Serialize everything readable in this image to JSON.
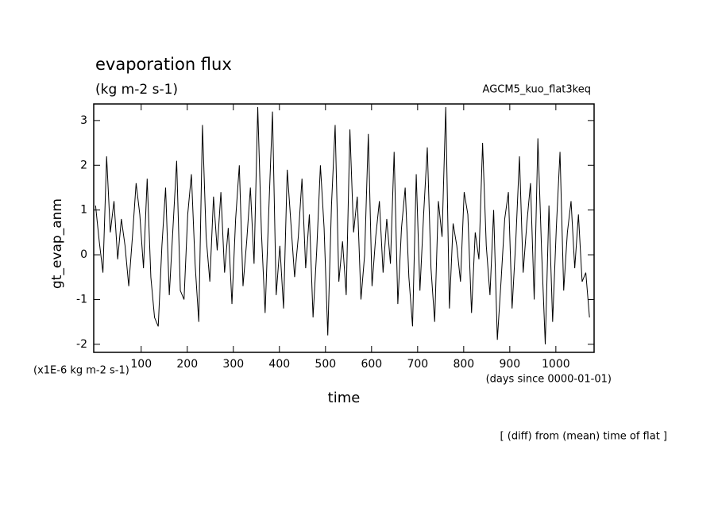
{
  "chart_data": {
    "type": "line",
    "title": "evaporation flux",
    "subtitle": "(kg m-2 s-1)",
    "experiment": "AGCM5_kuo_flat3keq",
    "y_label": "gt_evap_anm",
    "x_label": "time",
    "y_units": "(x1E-6 kg m-2 s-1)",
    "x_units": "(days since 0000-01-01)",
    "note": "[ (diff) from (mean) time of flat ]",
    "x": [
      1,
      9,
      17,
      25,
      33,
      41,
      49,
      57,
      65,
      73,
      81,
      89,
      97,
      105,
      113,
      121,
      129,
      137,
      145,
      153,
      161,
      169,
      177,
      185,
      193,
      201,
      209,
      217,
      225,
      233,
      241,
      249,
      257,
      265,
      273,
      281,
      289,
      297,
      305,
      313,
      321,
      329,
      337,
      345,
      353,
      361,
      369,
      377,
      385,
      393,
      401,
      409,
      417,
      425,
      433,
      441,
      449,
      457,
      465,
      473,
      481,
      489,
      497,
      505,
      513,
      521,
      529,
      537,
      545,
      553,
      561,
      569,
      577,
      585,
      593,
      601,
      609,
      617,
      625,
      633,
      641,
      649,
      657,
      665,
      673,
      681,
      689,
      697,
      705,
      713,
      721,
      729,
      737,
      745,
      753,
      761,
      769,
      777,
      785,
      793,
      801,
      809,
      817,
      825,
      833,
      841,
      849,
      857,
      865,
      873,
      881,
      889,
      897,
      905,
      913,
      921,
      929,
      937,
      945,
      953,
      961,
      969,
      977,
      985,
      993,
      1001,
      1009,
      1017,
      1025,
      1033,
      1041,
      1049,
      1057,
      1065,
      1073
    ],
    "series": [
      {
        "color": "#000000",
        "values": [
          1.1,
          0.3,
          -0.4,
          2.2,
          0.5,
          1.2,
          -0.1,
          0.8,
          0.2,
          -0.7,
          0.4,
          1.6,
          0.9,
          -0.3,
          1.7,
          -0.5,
          -1.4,
          -1.6,
          0.2,
          1.5,
          -0.9,
          0.6,
          2.1,
          -0.8,
          -1.0,
          0.9,
          1.8,
          -0.2,
          -1.5,
          2.9,
          0.4,
          -0.6,
          1.3,
          0.1,
          1.4,
          -0.4,
          0.6,
          -1.1,
          0.8,
          2.0,
          -0.7,
          0.3,
          1.5,
          -0.2,
          3.3,
          0.5,
          -1.3,
          1.0,
          3.2,
          -0.9,
          0.2,
          -1.2,
          1.9,
          0.7,
          -0.5,
          0.4,
          1.7,
          -0.3,
          0.9,
          -1.4,
          0.1,
          2.0,
          0.6,
          -1.8,
          1.1,
          2.9,
          -0.6,
          0.3,
          -0.9,
          2.8,
          0.5,
          1.3,
          -1.0,
          0.0,
          2.7,
          -0.7,
          0.4,
          1.2,
          -0.4,
          0.8,
          -0.2,
          2.3,
          -1.1,
          0.6,
          1.5,
          -0.5,
          -1.6,
          1.8,
          -0.8,
          0.9,
          2.4,
          -0.3,
          -1.5,
          1.2,
          0.4,
          3.3,
          -1.2,
          0.7,
          0.2,
          -0.6,
          1.4,
          0.9,
          -1.3,
          0.5,
          -0.1,
          2.5,
          0.2,
          -0.9,
          1.0,
          -1.9,
          -0.6,
          0.8,
          1.4,
          -1.2,
          0.3,
          2.2,
          -0.4,
          0.7,
          1.6,
          -1.0,
          2.6,
          0.1,
          -2.0,
          1.1,
          -1.5,
          0.6,
          2.3,
          -0.8,
          0.5,
          1.2,
          -0.3,
          0.9,
          -0.6,
          -0.4,
          -1.4
        ]
      }
    ],
    "xlim": [
      -3,
      1083
    ],
    "ylim": [
      -2.18,
      3.37
    ],
    "xticks": [
      100,
      200,
      300,
      400,
      500,
      600,
      700,
      800,
      900,
      1000
    ],
    "yticks": [
      -2,
      -1,
      0,
      1,
      2,
      3
    ]
  }
}
